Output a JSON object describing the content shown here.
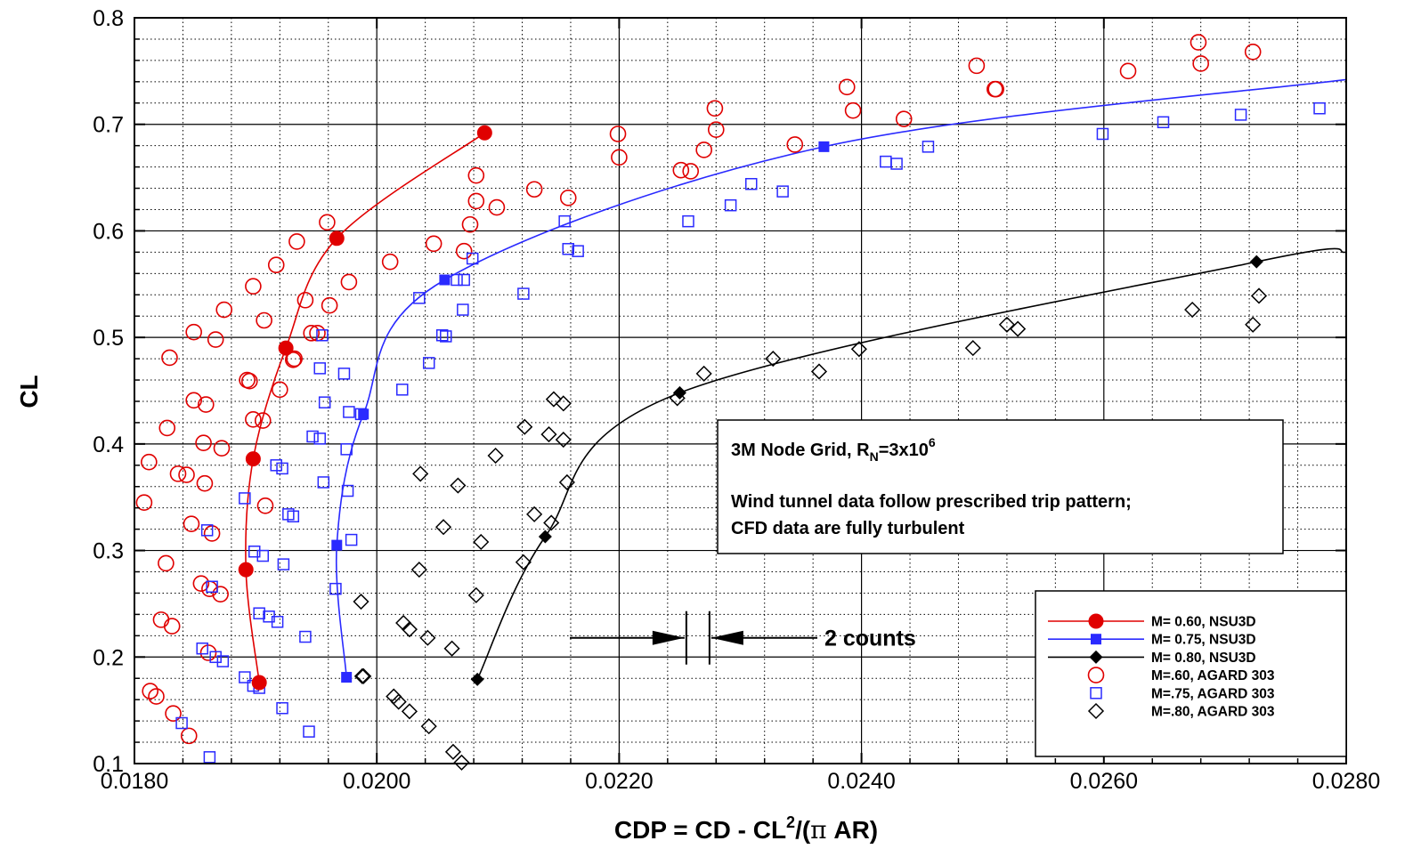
{
  "chart_data": {
    "type": "scatter",
    "xlabel_parts": [
      "CDP = CD - CL",
      "2",
      "/(",
      "π",
      " AR)"
    ],
    "ylabel": "CL",
    "xlim": [
      0.018,
      0.028
    ],
    "ylim": [
      0.1,
      0.8
    ],
    "x_major_step": 0.002,
    "x_minor_step": 0.0004,
    "y_major_step": 0.1,
    "y_minor_step": 0.02,
    "x_tick_labels": [
      "0.0180",
      "0.0200",
      "0.0220",
      "0.0240",
      "0.0260",
      "0.0280"
    ],
    "y_tick_labels": [
      "0.1",
      "0.2",
      "0.3",
      "0.4",
      "0.5",
      "0.6",
      "0.7",
      "0.8"
    ],
    "grid": true,
    "legend_placement": "bottom-right",
    "annotation": {
      "line1_main": "3M Node Grid, R",
      "line1_sub": "N",
      "line1_mid": "=3x10",
      "line1_sup": "6",
      "line2": "Wind tunnel data follow prescribed trip pattern;",
      "line3": "CFD data are fully turbulent"
    },
    "counts_label": "2 counts",
    "counts_marker": {
      "x": 0.02265,
      "y": 0.218
    },
    "series": [
      {
        "name": "M= 0.60, NSU3D",
        "kind": "line",
        "marker": "filled-circle",
        "color": "#e00000",
        "points": [
          [
            0.01903,
            0.176
          ],
          [
            0.01892,
            0.282
          ],
          [
            0.01898,
            0.386
          ],
          [
            0.01925,
            0.49
          ],
          [
            0.01967,
            0.593
          ],
          [
            0.02089,
            0.692
          ]
        ]
      },
      {
        "name": "M= 0.75, NSU3D",
        "kind": "line",
        "marker": "filled-square",
        "color": "#2a2aff",
        "points": [
          [
            0.01975,
            0.181
          ],
          [
            0.01967,
            0.305
          ],
          [
            0.01989,
            0.428
          ],
          [
            0.02056,
            0.554
          ],
          [
            0.02369,
            0.679
          ]
        ],
        "extend_to": [
          0.028,
          0.742
        ]
      },
      {
        "name": "M= 0.80, NSU3D",
        "kind": "line",
        "marker": "filled-diamond",
        "color": "#000000",
        "points": [
          [
            0.02083,
            0.179
          ],
          [
            0.02139,
            0.313
          ],
          [
            0.0225,
            0.448
          ],
          [
            0.02726,
            0.571
          ]
        ],
        "extend_to": [
          0.028,
          0.58
        ]
      },
      {
        "name": "M=.60, AGARD 303",
        "kind": "scatter",
        "marker": "open-circle",
        "color": "#e00000",
        "points": [
          [
            0.01808,
            0.345
          ],
          [
            0.01812,
            0.383
          ],
          [
            0.01813,
            0.168
          ],
          [
            0.01818,
            0.163
          ],
          [
            0.01822,
            0.235
          ],
          [
            0.01826,
            0.288
          ],
          [
            0.01827,
            0.415
          ],
          [
            0.01829,
            0.481
          ],
          [
            0.01831,
            0.229
          ],
          [
            0.01832,
            0.147
          ],
          [
            0.01836,
            0.372
          ],
          [
            0.01843,
            0.371
          ],
          [
            0.01845,
            0.126
          ],
          [
            0.01847,
            0.325
          ],
          [
            0.01849,
            0.441
          ],
          [
            0.01849,
            0.505
          ],
          [
            0.01855,
            0.269
          ],
          [
            0.01857,
            0.401
          ],
          [
            0.01858,
            0.363
          ],
          [
            0.01859,
            0.437
          ],
          [
            0.01861,
            0.204
          ],
          [
            0.01862,
            0.264
          ],
          [
            0.01864,
            0.316
          ],
          [
            0.01867,
            0.498
          ],
          [
            0.01871,
            0.259
          ],
          [
            0.01872,
            0.396
          ],
          [
            0.01874,
            0.526
          ],
          [
            0.01893,
            0.46
          ],
          [
            0.01895,
            0.459
          ],
          [
            0.01898,
            0.548
          ],
          [
            0.01898,
            0.423
          ],
          [
            0.01906,
            0.422
          ],
          [
            0.01907,
            0.516
          ],
          [
            0.01908,
            0.342
          ],
          [
            0.01917,
            0.568
          ],
          [
            0.0192,
            0.451
          ],
          [
            0.01931,
            0.479
          ],
          [
            0.01932,
            0.48
          ],
          [
            0.01934,
            0.59
          ],
          [
            0.01941,
            0.535
          ],
          [
            0.01946,
            0.504
          ],
          [
            0.01951,
            0.504
          ],
          [
            0.01959,
            0.608
          ],
          [
            0.01961,
            0.53
          ],
          [
            0.01977,
            0.552
          ],
          [
            0.02011,
            0.571
          ],
          [
            0.02047,
            0.588
          ],
          [
            0.02072,
            0.581
          ],
          [
            0.02077,
            0.606
          ],
          [
            0.02082,
            0.628
          ],
          [
            0.02082,
            0.652
          ],
          [
            0.02099,
            0.622
          ],
          [
            0.0213,
            0.639
          ],
          [
            0.02158,
            0.631
          ],
          [
            0.02199,
            0.691
          ],
          [
            0.022,
            0.669
          ],
          [
            0.02251,
            0.657
          ],
          [
            0.02259,
            0.656
          ],
          [
            0.0227,
            0.676
          ],
          [
            0.02279,
            0.715
          ],
          [
            0.0228,
            0.695
          ],
          [
            0.02345,
            0.681
          ],
          [
            0.02388,
            0.735
          ],
          [
            0.02393,
            0.713
          ],
          [
            0.02435,
            0.705
          ],
          [
            0.02495,
            0.755
          ],
          [
            0.0251,
            0.733
          ],
          [
            0.02511,
            0.733
          ],
          [
            0.0262,
            0.75
          ],
          [
            0.02678,
            0.777
          ],
          [
            0.0268,
            0.757
          ],
          [
            0.02723,
            0.768
          ]
        ]
      },
      {
        "name": "M=.75, AGARD 303",
        "kind": "scatter",
        "marker": "open-square",
        "color": "#2a2aff",
        "points": [
          [
            0.01839,
            0.138
          ],
          [
            0.01856,
            0.208
          ],
          [
            0.0186,
            0.319
          ],
          [
            0.01862,
            0.106
          ],
          [
            0.01864,
            0.266
          ],
          [
            0.01867,
            0.2
          ],
          [
            0.01873,
            0.196
          ],
          [
            0.01891,
            0.181
          ],
          [
            0.01891,
            0.349
          ],
          [
            0.01898,
            0.173
          ],
          [
            0.01899,
            0.299
          ],
          [
            0.01903,
            0.171
          ],
          [
            0.01903,
            0.241
          ],
          [
            0.01906,
            0.295
          ],
          [
            0.01911,
            0.238
          ],
          [
            0.01917,
            0.38
          ],
          [
            0.01918,
            0.233
          ],
          [
            0.01922,
            0.152
          ],
          [
            0.01922,
            0.377
          ],
          [
            0.01923,
            0.287
          ],
          [
            0.01927,
            0.334
          ],
          [
            0.01931,
            0.332
          ],
          [
            0.01941,
            0.219
          ],
          [
            0.01944,
            0.13
          ],
          [
            0.01947,
            0.407
          ],
          [
            0.01953,
            0.405
          ],
          [
            0.01953,
            0.471
          ],
          [
            0.01955,
            0.502
          ],
          [
            0.01956,
            0.364
          ],
          [
            0.01957,
            0.439
          ],
          [
            0.01966,
            0.264
          ],
          [
            0.01973,
            0.466
          ],
          [
            0.01975,
            0.395
          ],
          [
            0.01976,
            0.356
          ],
          [
            0.01977,
            0.43
          ],
          [
            0.01979,
            0.31
          ],
          [
            0.01987,
            0.428
          ],
          [
            0.02021,
            0.451
          ],
          [
            0.02035,
            0.537
          ],
          [
            0.02043,
            0.476
          ],
          [
            0.02054,
            0.502
          ],
          [
            0.02057,
            0.501
          ],
          [
            0.02066,
            0.554
          ],
          [
            0.02071,
            0.526
          ],
          [
            0.02072,
            0.554
          ],
          [
            0.02079,
            0.574
          ],
          [
            0.02121,
            0.541
          ],
          [
            0.02155,
            0.609
          ],
          [
            0.02158,
            0.583
          ],
          [
            0.02166,
            0.581
          ],
          [
            0.02257,
            0.609
          ],
          [
            0.02292,
            0.624
          ],
          [
            0.02309,
            0.644
          ],
          [
            0.02335,
            0.637
          ],
          [
            0.0242,
            0.665
          ],
          [
            0.02429,
            0.663
          ],
          [
            0.02455,
            0.679
          ],
          [
            0.02599,
            0.691
          ],
          [
            0.02649,
            0.702
          ],
          [
            0.02713,
            0.709
          ],
          [
            0.02778,
            0.715
          ]
        ]
      },
      {
        "name": "M=.80, AGARD 303",
        "kind": "scatter",
        "marker": "open-diamond",
        "color": "#000000",
        "points": [
          [
            0.01987,
            0.252
          ],
          [
            0.01988,
            0.182
          ],
          [
            0.01989,
            0.182
          ],
          [
            0.02014,
            0.163
          ],
          [
            0.02018,
            0.158
          ],
          [
            0.02022,
            0.232
          ],
          [
            0.02027,
            0.149
          ],
          [
            0.02027,
            0.226
          ],
          [
            0.02035,
            0.282
          ],
          [
            0.02036,
            0.372
          ],
          [
            0.02042,
            0.218
          ],
          [
            0.02043,
            0.135
          ],
          [
            0.02055,
            0.322
          ],
          [
            0.02062,
            0.208
          ],
          [
            0.02063,
            0.111
          ],
          [
            0.02067,
            0.361
          ],
          [
            0.0207,
            0.101
          ],
          [
            0.02082,
            0.258
          ],
          [
            0.02086,
            0.308
          ],
          [
            0.02098,
            0.389
          ],
          [
            0.02121,
            0.289
          ],
          [
            0.02122,
            0.416
          ],
          [
            0.0213,
            0.334
          ],
          [
            0.02142,
            0.409
          ],
          [
            0.02144,
            0.326
          ],
          [
            0.02146,
            0.442
          ],
          [
            0.02154,
            0.438
          ],
          [
            0.02154,
            0.404
          ],
          [
            0.02157,
            0.364
          ],
          [
            0.02248,
            0.443
          ],
          [
            0.0227,
            0.466
          ],
          [
            0.02327,
            0.48
          ],
          [
            0.02365,
            0.468
          ],
          [
            0.02398,
            0.489
          ],
          [
            0.02492,
            0.49
          ],
          [
            0.0252,
            0.512
          ],
          [
            0.02529,
            0.508
          ],
          [
            0.02673,
            0.526
          ],
          [
            0.02723,
            0.512
          ],
          [
            0.02728,
            0.539
          ]
        ]
      }
    ]
  }
}
